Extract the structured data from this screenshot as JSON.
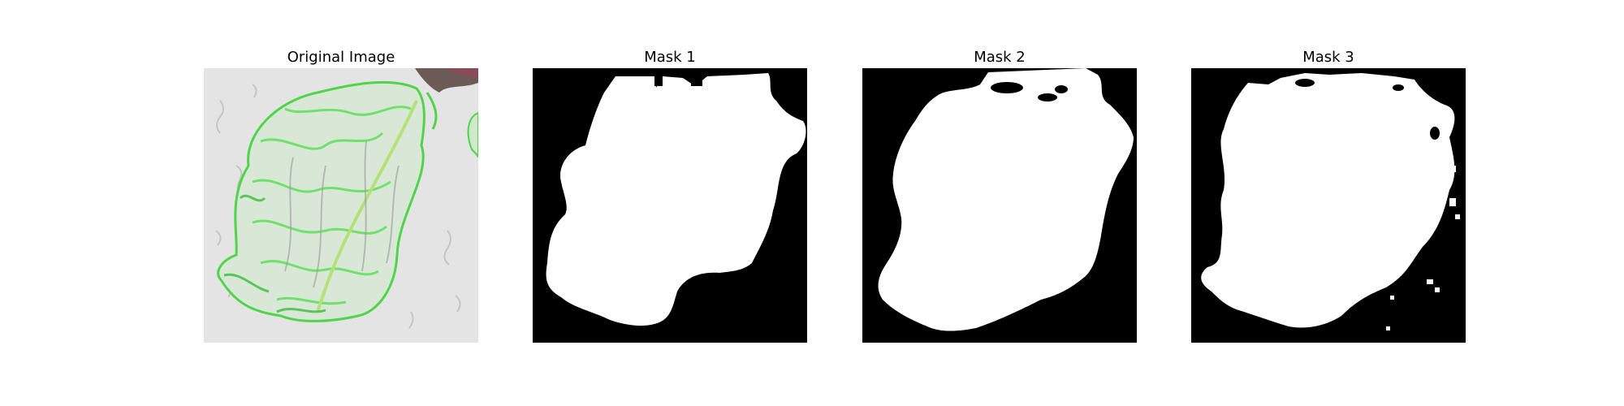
{
  "figure": {
    "panels": [
      {
        "title": "Original Image"
      },
      {
        "title": "Mask 1"
      },
      {
        "title": "Mask 2"
      },
      {
        "title": "Mask 3"
      }
    ]
  },
  "colors": {
    "mask_background": "#000000",
    "mask_foreground": "#ffffff",
    "original_background": "#e4e4e4",
    "leaf_green": "#5ee05a",
    "leaf_dark_green": "#2fb830",
    "vein_gray": "#9a9a9a"
  }
}
